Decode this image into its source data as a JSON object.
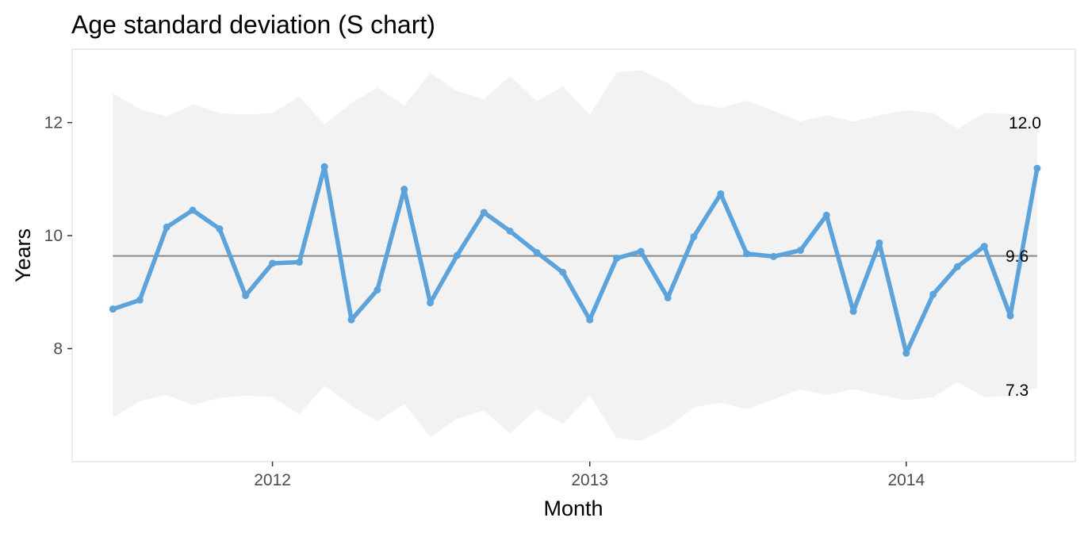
{
  "chart_data": {
    "type": "line",
    "title": "Age standard deviation (S chart)",
    "xlabel": "Month",
    "ylabel": "Years",
    "ylim": [
      6.0,
      13.3
    ],
    "xlim": [
      "2011-05-15",
      "2014-07-15"
    ],
    "y_ticks": [
      8,
      10,
      12
    ],
    "y_tick_labels": [
      "8",
      "10",
      "12"
    ],
    "x_ticks": [
      "2012-01-01",
      "2013-01-01",
      "2014-01-01"
    ],
    "x_tick_labels": [
      "2012",
      "2013",
      "2014"
    ],
    "grid": false,
    "legend": "none",
    "colors": {
      "line": "#5ba3da",
      "center_line": "#8c8c8c",
      "limit_band": "#f2f2f2",
      "panel_border": "#e6e6e6"
    },
    "center_line": 9.64,
    "end_labels": {
      "upper": "12.0",
      "center": "9.6",
      "lower": "7.3"
    },
    "x": [
      "2011-07-01",
      "2011-08-01",
      "2011-09-01",
      "2011-10-01",
      "2011-11-01",
      "2011-12-01",
      "2012-01-01",
      "2012-02-01",
      "2012-03-01",
      "2012-04-01",
      "2012-05-01",
      "2012-06-01",
      "2012-07-01",
      "2012-08-01",
      "2012-09-01",
      "2012-10-01",
      "2012-11-01",
      "2012-12-01",
      "2013-01-01",
      "2013-02-01",
      "2013-03-01",
      "2013-04-01",
      "2013-05-01",
      "2013-06-01",
      "2013-07-01",
      "2013-08-01",
      "2013-09-01",
      "2013-10-01",
      "2013-11-01",
      "2013-12-01",
      "2014-01-01",
      "2014-02-01",
      "2014-03-01",
      "2014-04-01",
      "2014-05-01",
      "2014-06-01"
    ],
    "series": [
      {
        "values": [
          8.7,
          8.86,
          10.15,
          10.45,
          10.12,
          8.94,
          9.51,
          9.53,
          11.22,
          8.51,
          9.04,
          10.82,
          8.81,
          9.65,
          10.41,
          10.08,
          9.7,
          9.35,
          8.51,
          9.6,
          9.72,
          8.9,
          9.98,
          10.74,
          9.68,
          9.63,
          9.74,
          10.36,
          8.66,
          9.87,
          7.92,
          8.96,
          9.45,
          9.81,
          8.58,
          11.19
        ]
      }
    ],
    "upper_limit": [
      12.52,
      12.24,
      12.11,
      12.32,
      12.17,
      12.14,
      12.17,
      12.46,
      11.97,
      12.35,
      12.62,
      12.3,
      12.88,
      12.56,
      12.42,
      12.82,
      12.38,
      12.64,
      12.14,
      12.89,
      12.93,
      12.7,
      12.35,
      12.26,
      12.39,
      12.21,
      12.02,
      12.13,
      12.02,
      12.13,
      12.22,
      12.17,
      11.89,
      12.17,
      12.15,
      11.99
    ],
    "lower_limit": [
      6.78,
      7.07,
      7.18,
      7.0,
      7.13,
      7.17,
      7.14,
      6.84,
      7.34,
      6.99,
      6.71,
      7.02,
      6.43,
      6.76,
      6.9,
      6.5,
      6.93,
      6.67,
      7.17,
      6.42,
      6.37,
      6.61,
      6.96,
      7.04,
      6.93,
      7.1,
      7.28,
      7.18,
      7.28,
      7.18,
      7.09,
      7.14,
      7.41,
      7.14,
      7.16,
      7.31
    ]
  }
}
